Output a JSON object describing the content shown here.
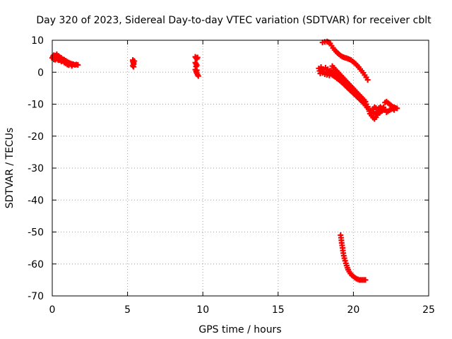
{
  "chart_data": {
    "type": "scatter",
    "title": "Day 320 of 2023, Sidereal Day-to-day VTEC variation (SDTVAR) for receiver cblt",
    "xlabel": "GPS time / hours",
    "ylabel": "SDTVAR / TECUs",
    "xlim": [
      0,
      25
    ],
    "ylim": [
      -70,
      10
    ],
    "xticks": [
      0,
      5,
      10,
      15,
      20,
      25
    ],
    "yticks": [
      10,
      0,
      -10,
      -20,
      -30,
      -40,
      -50,
      -60,
      -70
    ],
    "grid": true,
    "marker": "+",
    "color": "#ff0000",
    "series": [
      {
        "name": "SDTVAR",
        "points": [
          [
            0.0,
            4.5
          ],
          [
            0.05,
            5.0
          ],
          [
            0.1,
            5.3
          ],
          [
            0.15,
            4.6
          ],
          [
            0.2,
            5.2
          ],
          [
            0.25,
            4.8
          ],
          [
            0.3,
            5.6
          ],
          [
            0.35,
            4.9
          ],
          [
            0.4,
            5.1
          ],
          [
            0.45,
            4.4
          ],
          [
            0.5,
            4.7
          ],
          [
            0.55,
            4.2
          ],
          [
            0.6,
            4.5
          ],
          [
            0.65,
            3.9
          ],
          [
            0.7,
            4.1
          ],
          [
            0.75,
            3.6
          ],
          [
            0.8,
            3.9
          ],
          [
            0.85,
            3.4
          ],
          [
            0.9,
            3.6
          ],
          [
            0.95,
            3.2
          ],
          [
            1.0,
            3.3
          ],
          [
            1.05,
            2.9
          ],
          [
            1.1,
            3.0
          ],
          [
            1.15,
            2.7
          ],
          [
            1.2,
            2.8
          ],
          [
            1.25,
            2.5
          ],
          [
            1.3,
            2.6
          ],
          [
            1.35,
            2.4
          ],
          [
            1.4,
            2.5
          ],
          [
            1.5,
            2.3
          ],
          [
            1.6,
            2.4
          ],
          [
            1.7,
            2.3
          ],
          [
            0.4,
            3.8
          ],
          [
            0.6,
            3.4
          ],
          [
            0.8,
            3.0
          ],
          [
            1.0,
            2.4
          ],
          [
            0.3,
            4.2
          ],
          [
            0.5,
            3.8
          ],
          [
            0.7,
            3.5
          ],
          [
            0.9,
            2.8
          ],
          [
            1.1,
            2.2
          ],
          [
            1.3,
            2.0
          ],
          [
            0.2,
            3.9
          ],
          [
            0.1,
            4.0
          ],
          [
            5.35,
            3.8
          ],
          [
            5.35,
            3.3
          ],
          [
            5.4,
            2.9
          ],
          [
            5.4,
            2.5
          ],
          [
            5.35,
            2.0
          ],
          [
            5.4,
            1.7
          ],
          [
            5.45,
            3.5
          ],
          [
            9.5,
            4.8
          ],
          [
            9.55,
            4.5
          ],
          [
            9.6,
            4.2
          ],
          [
            9.65,
            4.6
          ],
          [
            9.5,
            3.0
          ],
          [
            9.55,
            2.6
          ],
          [
            9.6,
            2.2
          ],
          [
            9.55,
            1.8
          ],
          [
            9.6,
            0.6
          ],
          [
            9.55,
            0.2
          ],
          [
            9.6,
            -0.3
          ],
          [
            9.65,
            -0.8
          ],
          [
            9.7,
            -1.2
          ],
          [
            9.5,
            0.8
          ],
          [
            17.95,
            9.3
          ],
          [
            18.1,
            9.5
          ],
          [
            18.25,
            9.6
          ],
          [
            18.35,
            9.4
          ],
          [
            18.45,
            9.0
          ],
          [
            18.55,
            8.3
          ],
          [
            18.65,
            7.6
          ],
          [
            18.75,
            7.0
          ],
          [
            18.85,
            6.5
          ],
          [
            18.95,
            6.0
          ],
          [
            19.05,
            5.6
          ],
          [
            19.15,
            5.2
          ],
          [
            19.25,
            4.9
          ],
          [
            19.35,
            4.7
          ],
          [
            19.45,
            4.5
          ],
          [
            19.55,
            4.4
          ],
          [
            19.65,
            4.2
          ],
          [
            19.75,
            4.0
          ],
          [
            19.85,
            3.8
          ],
          [
            19.95,
            3.4
          ],
          [
            20.05,
            3.0
          ],
          [
            20.15,
            2.6
          ],
          [
            20.25,
            2.1
          ],
          [
            20.35,
            1.6
          ],
          [
            20.45,
            1.0
          ],
          [
            20.55,
            0.4
          ],
          [
            20.65,
            -0.2
          ],
          [
            20.75,
            -0.9
          ],
          [
            20.85,
            -1.6
          ],
          [
            20.95,
            -2.4
          ],
          [
            17.7,
            1.2
          ],
          [
            17.75,
            0.4
          ],
          [
            17.8,
            -0.4
          ],
          [
            17.85,
            1.6
          ],
          [
            17.9,
            0.8
          ],
          [
            17.95,
            -0.2
          ],
          [
            18.0,
            1.0
          ],
          [
            18.05,
            0.2
          ],
          [
            18.1,
            -0.6
          ],
          [
            18.15,
            1.4
          ],
          [
            18.2,
            0.0
          ],
          [
            18.25,
            -0.8
          ],
          [
            18.3,
            0.9
          ],
          [
            18.35,
            -0.3
          ],
          [
            18.4,
            -1.0
          ],
          [
            18.45,
            0.5
          ],
          [
            18.5,
            -0.5
          ],
          [
            18.55,
            0.2
          ],
          [
            18.6,
            -0.9
          ],
          [
            18.65,
            -0.2
          ],
          [
            18.7,
            -1.2
          ],
          [
            18.75,
            -0.5
          ],
          [
            18.8,
            -1.5
          ],
          [
            18.85,
            -0.8
          ],
          [
            18.9,
            -1.9
          ],
          [
            18.95,
            -1.2
          ],
          [
            19.0,
            -2.2
          ],
          [
            19.05,
            -1.6
          ],
          [
            19.1,
            -2.6
          ],
          [
            19.15,
            -2.0
          ],
          [
            19.2,
            -3.0
          ],
          [
            19.25,
            -2.4
          ],
          [
            19.3,
            -3.4
          ],
          [
            19.35,
            -2.8
          ],
          [
            19.4,
            -3.9
          ],
          [
            19.45,
            -3.2
          ],
          [
            19.5,
            -4.3
          ],
          [
            19.55,
            -3.6
          ],
          [
            19.6,
            -4.8
          ],
          [
            19.65,
            -4.1
          ],
          [
            19.7,
            -5.2
          ],
          [
            19.75,
            -4.5
          ],
          [
            19.8,
            -5.7
          ],
          [
            19.85,
            -5.0
          ],
          [
            19.9,
            -6.1
          ],
          [
            19.95,
            -5.4
          ],
          [
            20.0,
            -6.6
          ],
          [
            20.05,
            -5.9
          ],
          [
            20.1,
            -7.0
          ],
          [
            20.15,
            -6.3
          ],
          [
            20.2,
            -7.5
          ],
          [
            20.25,
            -6.8
          ],
          [
            20.3,
            -7.9
          ],
          [
            20.35,
            -7.2
          ],
          [
            20.4,
            -8.4
          ],
          [
            20.45,
            -7.7
          ],
          [
            20.5,
            -8.8
          ],
          [
            20.55,
            -8.2
          ],
          [
            20.6,
            -9.3
          ],
          [
            20.65,
            -8.7
          ],
          [
            20.7,
            -9.8
          ],
          [
            20.75,
            -9.3
          ],
          [
            20.8,
            -10.4
          ],
          [
            20.85,
            -10.0
          ],
          [
            20.9,
            -11.0
          ],
          [
            20.95,
            -10.8
          ],
          [
            21.0,
            -11.5
          ],
          [
            21.05,
            -12.2
          ],
          [
            21.1,
            -13.0
          ],
          [
            21.15,
            -12.0
          ],
          [
            18.6,
            1.9
          ],
          [
            18.7,
            1.4
          ],
          [
            18.8,
            0.8
          ],
          [
            18.9,
            0.3
          ],
          [
            19.0,
            -0.2
          ],
          [
            19.1,
            -0.7
          ],
          [
            19.2,
            -1.2
          ],
          [
            19.3,
            -1.7
          ],
          [
            19.4,
            -2.2
          ],
          [
            19.5,
            -2.7
          ],
          [
            19.6,
            -3.2
          ],
          [
            19.7,
            -3.7
          ],
          [
            19.8,
            -4.2
          ],
          [
            19.9,
            -4.7
          ],
          [
            20.0,
            -5.2
          ],
          [
            20.1,
            -5.7
          ],
          [
            20.2,
            -6.2
          ],
          [
            20.3,
            -6.7
          ],
          [
            20.4,
            -7.2
          ],
          [
            20.5,
            -7.7
          ],
          [
            20.6,
            -8.2
          ],
          [
            20.7,
            -8.7
          ],
          [
            20.8,
            -9.2
          ],
          [
            21.2,
            -13.5
          ],
          [
            21.3,
            -14.2
          ],
          [
            21.4,
            -14.6
          ],
          [
            21.5,
            -14.1
          ],
          [
            21.6,
            -13.4
          ],
          [
            21.7,
            -12.8
          ],
          [
            21.8,
            -12.4
          ],
          [
            21.9,
            -12.1
          ],
          [
            22.0,
            -11.8
          ],
          [
            22.1,
            -11.6
          ],
          [
            21.3,
            -11.5
          ],
          [
            21.4,
            -11.0
          ],
          [
            21.5,
            -11.2
          ],
          [
            21.6,
            -11.6
          ],
          [
            21.7,
            -11.2
          ],
          [
            21.8,
            -10.9
          ],
          [
            21.9,
            -11.3
          ],
          [
            22.0,
            -11.0
          ],
          [
            22.1,
            -9.5
          ],
          [
            22.2,
            -9.2
          ],
          [
            22.3,
            -9.6
          ],
          [
            22.4,
            -10.0
          ],
          [
            22.5,
            -10.4
          ],
          [
            22.6,
            -10.8
          ],
          [
            22.7,
            -11.0
          ],
          [
            22.8,
            -11.2
          ],
          [
            22.9,
            -11.3
          ],
          [
            22.2,
            -12.5
          ],
          [
            22.3,
            -12.2
          ],
          [
            22.4,
            -11.9
          ],
          [
            22.5,
            -11.6
          ],
          [
            22.6,
            -11.4
          ],
          [
            22.7,
            -11.8
          ],
          [
            21.35,
            -12.6
          ],
          [
            21.45,
            -13.0
          ],
          [
            21.55,
            -12.4
          ],
          [
            19.15,
            -51.0
          ],
          [
            19.18,
            -51.8
          ],
          [
            19.2,
            -52.6
          ],
          [
            19.22,
            -53.4
          ],
          [
            19.25,
            -54.2
          ],
          [
            19.28,
            -55.0
          ],
          [
            19.3,
            -55.8
          ],
          [
            19.33,
            -56.6
          ],
          [
            19.36,
            -57.4
          ],
          [
            19.4,
            -58.2
          ],
          [
            19.45,
            -59.0
          ],
          [
            19.5,
            -59.8
          ],
          [
            19.55,
            -60.5
          ],
          [
            19.6,
            -61.2
          ],
          [
            19.65,
            -61.8
          ],
          [
            19.72,
            -62.4
          ],
          [
            19.8,
            -63.0
          ],
          [
            19.9,
            -63.5
          ],
          [
            20.0,
            -63.9
          ],
          [
            20.1,
            -64.3
          ],
          [
            20.2,
            -64.6
          ],
          [
            20.3,
            -64.8
          ],
          [
            20.4,
            -65.0
          ],
          [
            20.5,
            -65.0
          ],
          [
            20.6,
            -65.0
          ],
          [
            20.7,
            -65.0
          ],
          [
            20.8,
            -65.0
          ]
        ]
      }
    ]
  }
}
